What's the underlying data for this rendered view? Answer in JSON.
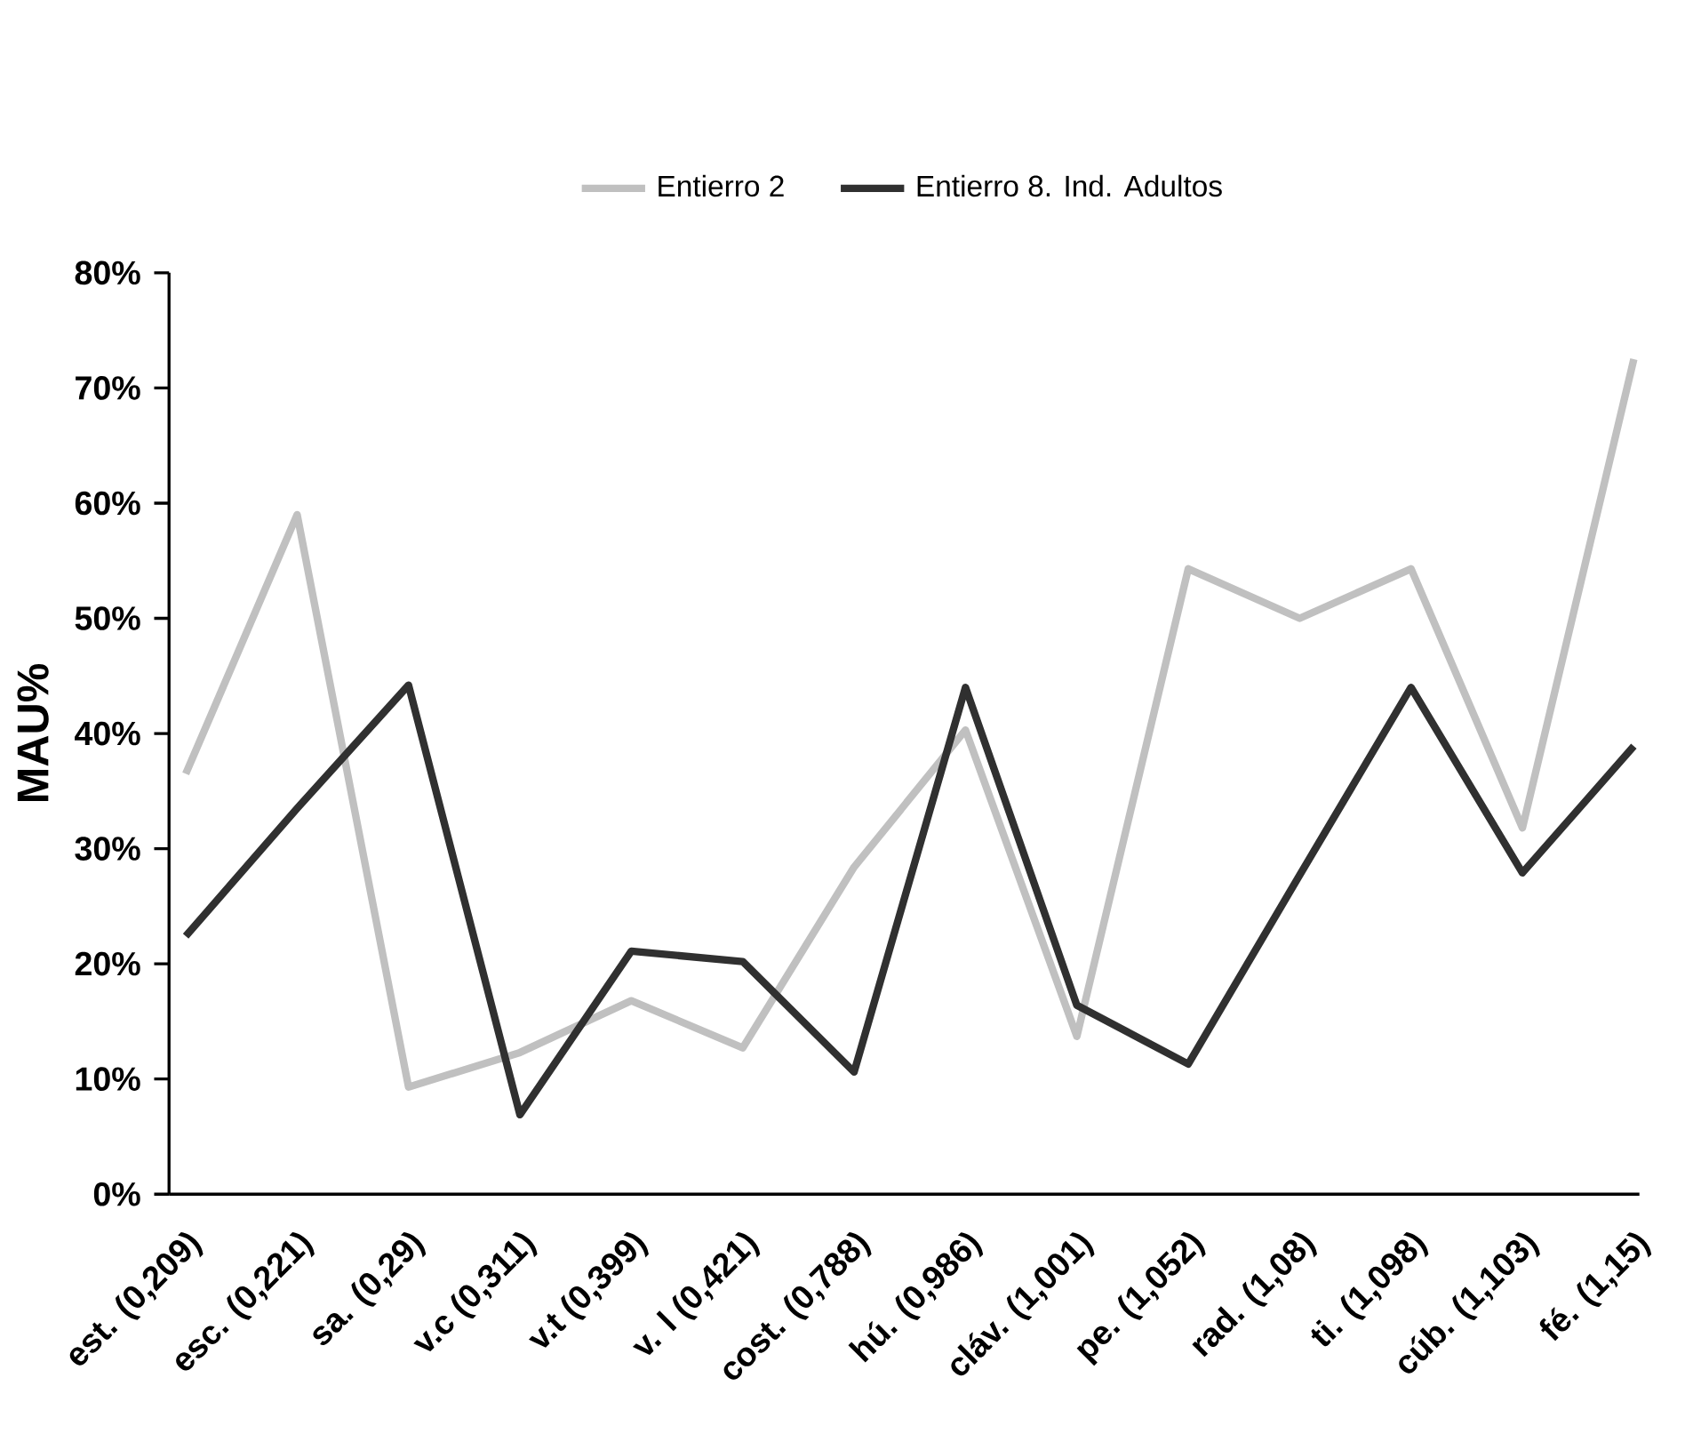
{
  "chart_data": {
    "type": "line",
    "ylabel": "MAU%",
    "categories": [
      "est. (0,209)",
      "esc. (0,221)",
      "sa. (0,29)",
      "v.c (0,311)",
      "v.t (0,399)",
      "v. l (0,421)",
      "cost. (0,788)",
      "hú. (0,986)",
      "cláv. (1,001)",
      "pe. (1,052)",
      "rad. (1,08)",
      "ti. (1,098)",
      "cúb. (1,103)",
      "fé. (1,15)"
    ],
    "series": [
      {
        "name": "Entierro 2",
        "color": "#c0c0c0",
        "values": [
          36.5,
          59,
          9.3,
          12.3,
          16.8,
          12.7,
          28.4,
          40.3,
          13.7,
          54.3,
          50,
          54.3,
          31.8,
          72.5
        ]
      },
      {
        "name": "Entierro 8. Ind. Adultos",
        "color": "#303030",
        "values": [
          22.4,
          33.5,
          44.2,
          6.9,
          21.1,
          20.2,
          10.6,
          44,
          16.4,
          11.3,
          27.7,
          44,
          27.9,
          38.9
        ]
      }
    ],
    "ylim": [
      0,
      80
    ],
    "yticks": [
      {
        "value": 0,
        "label": "0%"
      },
      {
        "value": 10,
        "label": "10%"
      },
      {
        "value": 20,
        "label": "20%"
      },
      {
        "value": 30,
        "label": "30%"
      },
      {
        "value": 40,
        "label": "40%"
      },
      {
        "value": 50,
        "label": "50%"
      },
      {
        "value": 60,
        "label": "60%"
      },
      {
        "value": 70,
        "label": "70%"
      },
      {
        "value": 80,
        "label": "80%"
      }
    ],
    "grid": false,
    "legend": "top",
    "marker": "none",
    "line_style": "solid"
  }
}
